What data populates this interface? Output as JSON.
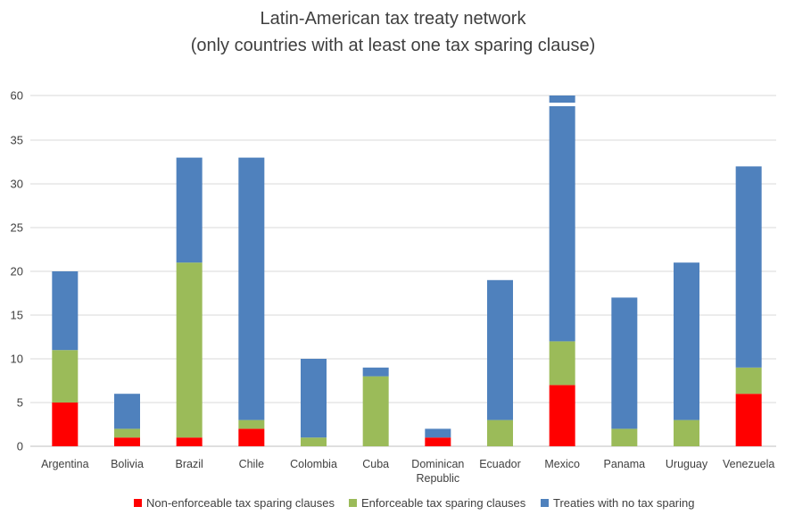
{
  "title": "Latin-American tax treaty network",
  "subtitle": "(only countries with at least one tax sparing clause)",
  "chart_data": {
    "type": "bar",
    "stacked": true,
    "title": "Latin-American tax treaty network",
    "subtitle": "(only countries with at least one tax sparing clause)",
    "categories": [
      "Argentina",
      "Bolivia",
      "Brazil",
      "Chile",
      "Colombia",
      "Cuba",
      "Dominican Republic",
      "Ecuador",
      "Mexico",
      "Panama",
      "Uruguay",
      "Venezuela"
    ],
    "category_lines": [
      [
        "Argentina"
      ],
      [
        "Bolivia"
      ],
      [
        "Brazil"
      ],
      [
        "Chile"
      ],
      [
        "Colombia"
      ],
      [
        "Cuba"
      ],
      [
        "Dominican",
        "Republic"
      ],
      [
        "Ecuador"
      ],
      [
        "Mexico"
      ],
      [
        "Panama"
      ],
      [
        "Uruguay"
      ],
      [
        "Venezuela"
      ]
    ],
    "y_ticks": [
      "0",
      "5",
      "10",
      "15",
      "20",
      "25",
      "30",
      "35",
      "60"
    ],
    "axis_break": {
      "between": [
        35,
        60
      ]
    },
    "grid": true,
    "legend_position": "bottom",
    "series": [
      {
        "name": "Non-enforceable tax sparing clauses",
        "color": "#ff0000",
        "values": [
          5,
          1,
          1,
          2,
          0,
          0,
          1,
          0,
          7,
          0,
          0,
          6
        ]
      },
      {
        "name": "Enforceable tax sparing clauses",
        "color": "#9bbb59",
        "values": [
          6,
          1,
          20,
          1,
          1,
          8,
          0,
          3,
          5,
          2,
          3,
          3
        ]
      },
      {
        "name": "Treaties with no tax sparing",
        "color": "#4f81bd",
        "values": [
          9,
          4,
          12,
          30,
          9,
          1,
          1,
          16,
          46,
          15,
          18,
          23
        ]
      }
    ]
  }
}
